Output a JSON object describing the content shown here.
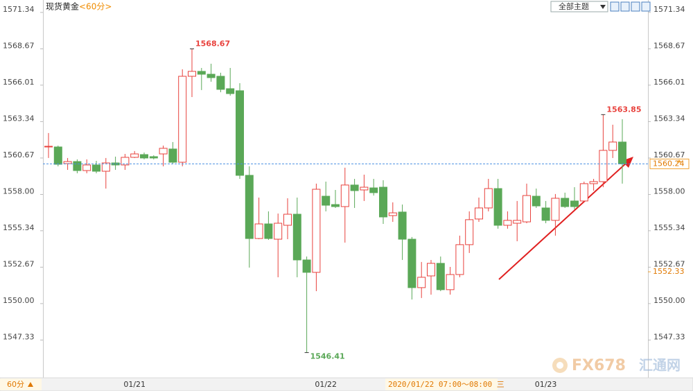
{
  "chart_data": {
    "type": "candlestick",
    "title": "现货黄金",
    "subtitle": "<60分>",
    "toolbar_label": "全部主题",
    "period_selector": "60分",
    "watermark": [
      "FX678",
      "汇通网"
    ],
    "categories": [
      null,
      null,
      null,
      null,
      null,
      null,
      null,
      null,
      null,
      "01/21",
      null,
      null,
      null,
      null,
      null,
      null,
      null,
      null,
      null,
      null,
      null,
      null,
      null,
      null,
      null,
      null,
      null,
      null,
      null,
      "01/22",
      null,
      null,
      null,
      null,
      null,
      null,
      null,
      null,
      null,
      null,
      null,
      null,
      null,
      null,
      null,
      null,
      null,
      null,
      null,
      null,
      null,
      null,
      "01/23",
      null,
      null,
      null,
      null,
      null,
      null,
      null,
      null
    ],
    "open": [
      1561.48,
      1561.48,
      1560.26,
      1560.41,
      1559.75,
      1560.16,
      1559.7,
      1560.31,
      1560.16,
      1560.72,
      1560.92,
      1560.77,
      1560.97,
      1561.33,
      1560.36,
      1566.66,
      1567.02,
      1566.81,
      1566.66,
      1565.75,
      1565.6,
      1559.4,
      1554.77,
      1555.84,
      1554.72,
      1555.74,
      1556.55,
      1553.2,
      1552.29,
      1557.87,
      1557.26,
      1557.11,
      1558.69,
      1558.33,
      1558.48,
      1558.53,
      1556.45,
      1556.71,
      1554.72,
      1551.17,
      1552.03,
      1552.95,
      1551.02,
      1552.13,
      1554.32,
      1556.2,
      1557.01,
      1558.43,
      1555.74,
      1555.89,
      1555.99,
      1557.87,
      1557.01,
      1556.1,
      1557.72,
      1557.52,
      1557.52,
      1558.79,
      1558.94,
      1561.23,
      1561.84
    ],
    "high": [
      1562.5,
      1561.58,
      1560.67,
      1560.57,
      1560.57,
      1560.46,
      1560.67,
      1560.77,
      1560.97,
      1561.18,
      1561.07,
      1560.87,
      1561.58,
      1561.84,
      1567.17,
      1568.67,
      1567.27,
      1567.58,
      1566.92,
      1567.27,
      1566.15,
      1560.06,
      1557.77,
      1556.76,
      1556.6,
      1557.72,
      1557.77,
      1553.45,
      1558.79,
      1558.94,
      1558.33,
      1559.96,
      1559.14,
      1559.45,
      1559.14,
      1559.04,
      1557.42,
      1557.26,
      1554.88,
      1553.05,
      1553.2,
      1553.45,
      1552.69,
      1554.98,
      1556.76,
      1557.77,
      1559.14,
      1559.14,
      1556.76,
      1557.52,
      1558.79,
      1558.43,
      1557.52,
      1558.03,
      1558.13,
      1558.53,
      1558.94,
      1559.14,
      1563.85,
      1563.11,
      1563.51
    ],
    "low": [
      1560.67,
      1560.06,
      1559.8,
      1559.55,
      1559.55,
      1559.55,
      1558.43,
      1559.8,
      1559.8,
      1560.67,
      1560.57,
      1560.57,
      1560.06,
      1560.21,
      1560.06,
      1565.14,
      1565.65,
      1566.26,
      1565.49,
      1565.24,
      1559.14,
      1552.64,
      1554.72,
      1554.67,
      1551.93,
      1554.72,
      1551.93,
      1546.41,
      1550.91,
      1556.76,
      1557.01,
      1554.47,
      1557.01,
      1557.52,
      1557.92,
      1555.84,
      1555.99,
      1553.2,
      1550.3,
      1550.41,
      1550.66,
      1550.91,
      1550.66,
      1551.93,
      1553.71,
      1555.99,
      1556.76,
      1555.49,
      1555.49,
      1554.57,
      1555.89,
      1557.01,
      1555.89,
      1554.98,
      1557.01,
      1556.91,
      1557.42,
      1558.28,
      1558.53,
      1560.67,
      1558.79
    ],
    "close": [
      1561.53,
      1560.21,
      1560.41,
      1559.75,
      1560.16,
      1559.7,
      1560.31,
      1560.16,
      1560.72,
      1560.97,
      1560.67,
      1560.67,
      1561.38,
      1560.36,
      1566.66,
      1567.02,
      1566.81,
      1566.56,
      1565.7,
      1565.39,
      1559.4,
      1554.77,
      1555.84,
      1554.77,
      1555.89,
      1556.55,
      1553.2,
      1552.29,
      1558.38,
      1557.21,
      1557.11,
      1558.69,
      1558.28,
      1558.53,
      1558.13,
      1556.35,
      1556.65,
      1554.72,
      1551.17,
      1551.93,
      1552.95,
      1551.02,
      1552.13,
      1554.32,
      1556.15,
      1557.01,
      1558.43,
      1555.74,
      1556.1,
      1556.1,
      1557.92,
      1557.16,
      1556.1,
      1557.72,
      1557.11,
      1557.11,
      1558.79,
      1558.94,
      1561.23,
      1561.84,
      1560.24
    ],
    "up_color": "#e8413c",
    "down_color": "#5aa857",
    "marked_points": [
      {
        "field": "high",
        "index": 15
      },
      {
        "field": "low",
        "index": 27
      },
      {
        "field": "high",
        "index": 58
      }
    ],
    "cursor_price": 1552.33,
    "cursor_time": "2020/01/22 07:00～08:00 三",
    "ylim": [
      1544.56,
      1572.25
    ],
    "yticks": [
      1547.33,
      {
        "value": 1550,
        "label": "1550.00"
      },
      1552.67,
      1555.34,
      {
        "value": 1558,
        "label": "1558.00"
      },
      1560.67,
      1563.34,
      1566.01,
      1568.67,
      1571.34
    ],
    "grid": false
  }
}
